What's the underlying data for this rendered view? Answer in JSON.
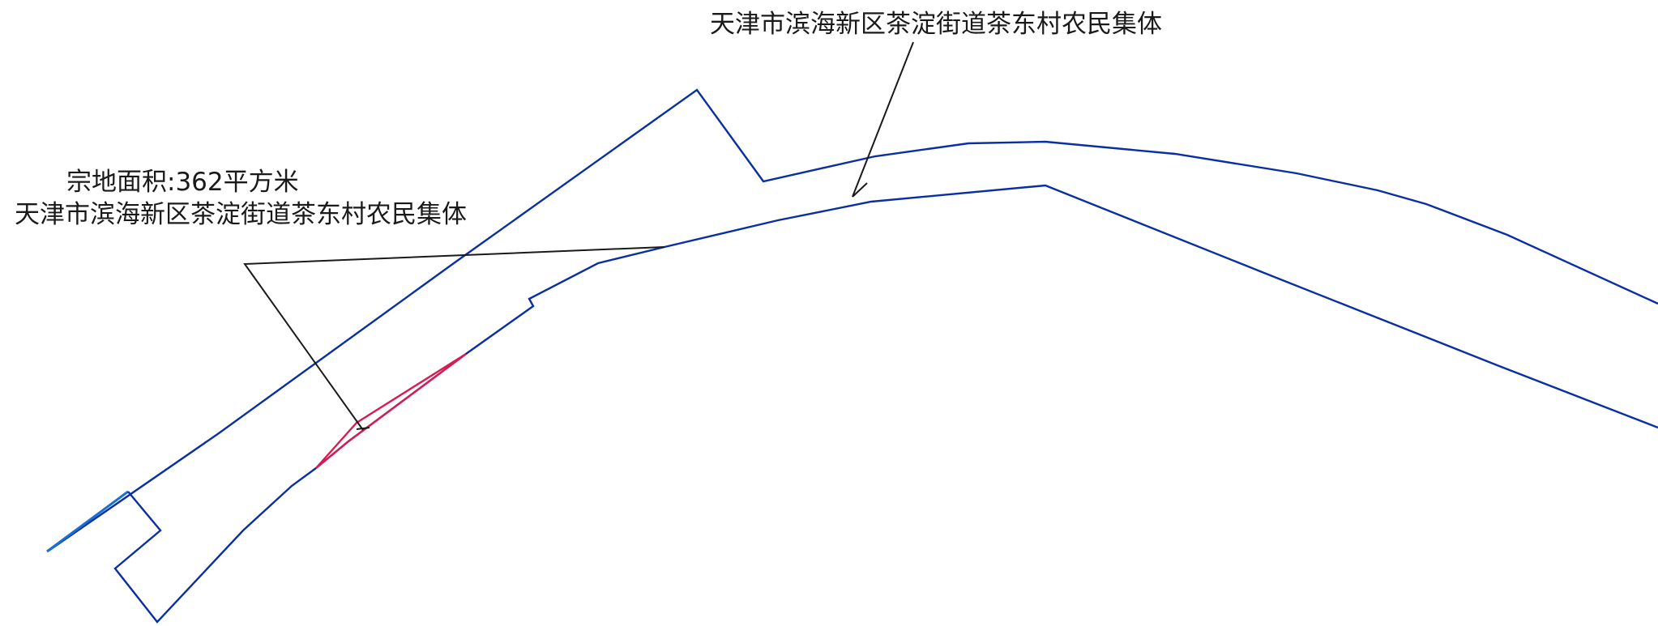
{
  "colors": {
    "boundary": "#0a2fa3",
    "boundary_short_segment": "#1a6fd0",
    "subject_parcel": "#d81b52",
    "leader": "#1a1a1a",
    "text": "#1a1a1a",
    "background": "#ffffff"
  },
  "labels": {
    "top_owner": "天津市滨海新区茶淀街道茶东村农民集体",
    "parcel_area": "宗地面积:362平方米",
    "parcel_owner": "天津市滨海新区茶淀街道茶东村农民集体"
  }
}
